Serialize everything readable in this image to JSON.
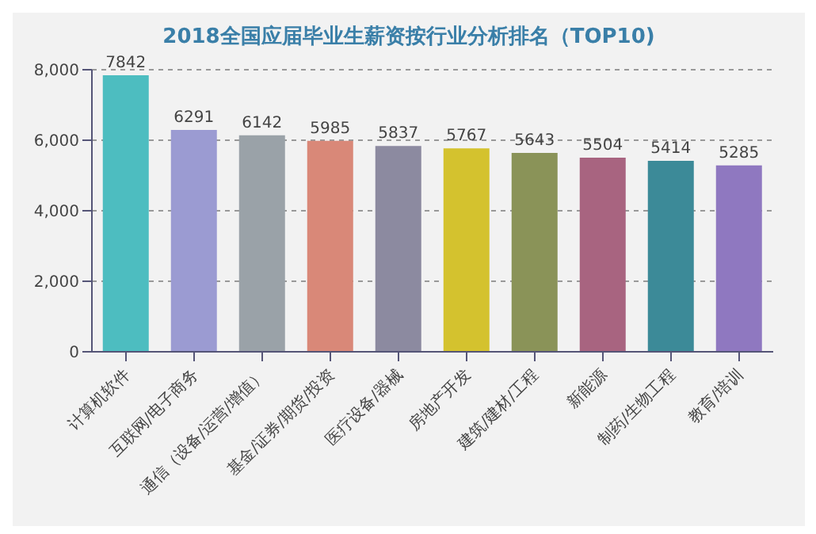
{
  "chart_data": {
    "type": "bar",
    "title": "2018全国应届毕业生薪资按行业分析排名（TOP10)",
    "categories": [
      "计算机软件",
      "互联网/电子商务",
      "通信（设备/运营/增值）",
      "基金/证券/期货/投资",
      "医疗设备/器械",
      "房地产开发",
      "建筑/建材/工程",
      "新能源",
      "制药/生物工程",
      "教育/培训"
    ],
    "values": [
      7842,
      6291,
      6142,
      5985,
      5837,
      5767,
      5643,
      5504,
      5414,
      5285
    ],
    "colors": [
      "#4dbdc0",
      "#9b9bd2",
      "#9aa2a8",
      "#d98878",
      "#8c8aa0",
      "#d4c22e",
      "#8a9358",
      "#a86480",
      "#3c8a98",
      "#8f78c0"
    ],
    "ylim": [
      0,
      8000
    ],
    "yticks": [
      {
        "value": 0,
        "label": "0"
      },
      {
        "value": 2000,
        "label": "2,000"
      },
      {
        "value": 4000,
        "label": "4,000"
      },
      {
        "value": 6000,
        "label": "6,000"
      },
      {
        "value": 8000,
        "label": "8,000"
      }
    ],
    "grid": "y",
    "data_labels": true
  }
}
